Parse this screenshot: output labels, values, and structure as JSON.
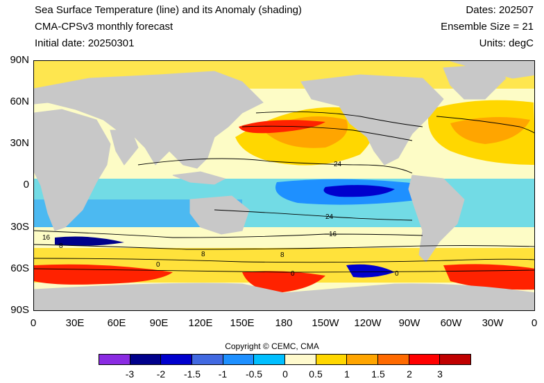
{
  "header": {
    "title": "Sea Surface Temperature (line) and its Anomaly (shading)",
    "model": "CMA-CPSv3 monthly forecast",
    "initial_date": "Initial date: 20250301",
    "dates": "Dates: 202507",
    "ensemble": "Ensemble Size = 21",
    "units": "Units: degC"
  },
  "axes": {
    "y_ticks": [
      "90N",
      "60N",
      "30N",
      "0",
      "30S",
      "60S",
      "90S"
    ],
    "x_ticks": [
      "0",
      "30E",
      "60E",
      "90E",
      "120E",
      "150E",
      "180",
      "150W",
      "120W",
      "90W",
      "60W",
      "30W",
      "0"
    ]
  },
  "contour_labels": [
    "24",
    "24",
    "16",
    "16",
    "8",
    "8",
    "8",
    "0",
    "0",
    "0"
  ],
  "colorbar": {
    "ticks": [
      "-3",
      "-2",
      "-1.5",
      "-1",
      "-0.5",
      "0",
      "0.5",
      "1",
      "1.5",
      "2",
      "3"
    ],
    "colors": [
      "#8a2be2",
      "#00008b",
      "#0000cd",
      "#4169e1",
      "#1e90ff",
      "#00bfff",
      "#fffacd",
      "#ffd700",
      "#ffa500",
      "#ff6a00",
      "#ff0000",
      "#c00000"
    ]
  },
  "copyright": "Copyright © CEMC, CMA",
  "colors": {
    "land": "#c8c8c8",
    "ocean_neutral": "#fdfcc6"
  }
}
